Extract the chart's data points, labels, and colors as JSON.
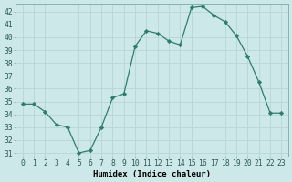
{
  "x": [
    0,
    1,
    2,
    3,
    4,
    5,
    6,
    7,
    8,
    9,
    10,
    11,
    12,
    13,
    14,
    15,
    16,
    17,
    18,
    19,
    20,
    21,
    22,
    23
  ],
  "y": [
    34.8,
    34.8,
    34.2,
    33.2,
    33.0,
    31.0,
    31.2,
    33.0,
    35.3,
    35.6,
    39.3,
    40.5,
    40.3,
    39.7,
    39.4,
    42.3,
    42.4,
    41.7,
    41.2,
    40.1,
    38.5,
    36.5,
    34.1,
    34.1
  ],
  "line_color": "#2e7d6e",
  "marker": "D",
  "marker_size": 2.2,
  "bg_color": "#cce8e8",
  "grid_color": "#b8d4d4",
  "xlabel": "Humidex (Indice chaleur)",
  "ylabel": "",
  "ylim_min": 30.7,
  "ylim_max": 42.6,
  "yticks": [
    31,
    32,
    33,
    34,
    35,
    36,
    37,
    38,
    39,
    40,
    41,
    42
  ],
  "xticks": [
    0,
    1,
    2,
    3,
    4,
    5,
    6,
    7,
    8,
    9,
    10,
    11,
    12,
    13,
    14,
    15,
    16,
    17,
    18,
    19,
    20,
    21,
    22,
    23
  ],
  "tick_fontsize": 5.8,
  "xlabel_fontsize": 6.5,
  "line_width": 0.9
}
